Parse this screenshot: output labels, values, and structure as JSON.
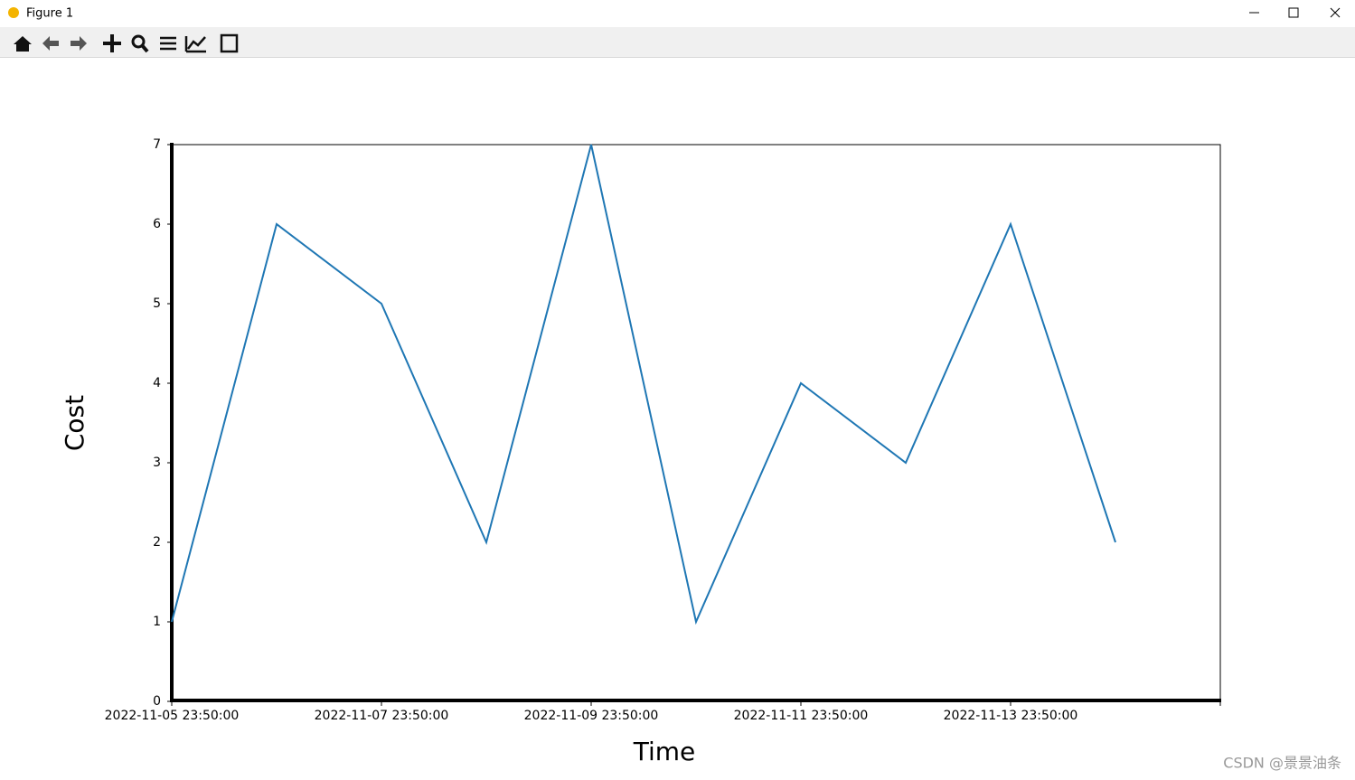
{
  "window": {
    "title": "Figure 1"
  },
  "watermark": "CSDN @景景油条",
  "chart_data": {
    "type": "line",
    "x_label": "Time",
    "y_label": "Cost",
    "x": [
      "2022-11-05 23:50:00",
      "2022-11-06 23:50:00",
      "2022-11-07 23:50:00",
      "2022-11-08 23:50:00",
      "2022-11-09 23:50:00",
      "2022-11-10 23:50:00",
      "2022-11-11 23:50:00",
      "2022-11-12 23:50:00",
      "2022-11-13 23:50:00",
      "2022-11-14 23:50:00"
    ],
    "series": [
      {
        "name": "Cost",
        "color": "#1f77b4",
        "values": [
          1,
          6,
          5,
          2,
          7,
          1,
          4,
          3,
          6,
          2
        ]
      }
    ],
    "xlim": [
      "2022-11-05 23:50:00",
      "2022-11-15 23:50:00"
    ],
    "xticks": [
      "2022-11-05 23:50:00",
      "2022-11-07 23:50:00",
      "2022-11-09 23:50:00",
      "2022-11-11 23:50:00",
      "2022-11-13 23:50:00"
    ],
    "ylim": [
      0,
      7
    ],
    "yticks": [
      0,
      1,
      2,
      3,
      4,
      5,
      6,
      7
    ],
    "grid": false
  }
}
